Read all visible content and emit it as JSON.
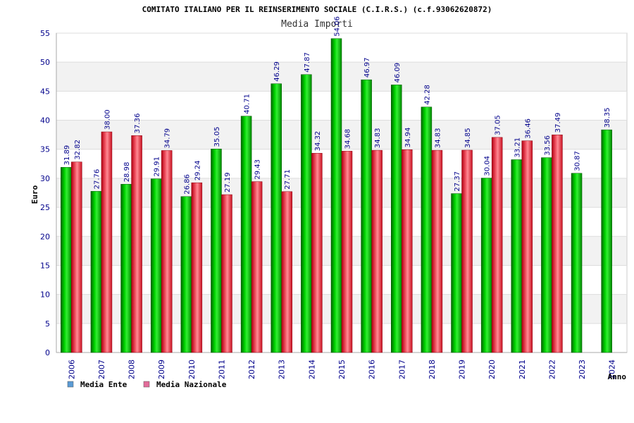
{
  "chart_data": {
    "type": "bar",
    "title": "COMITATO ITALIANO PER IL REINSERIMENTO SOCIALE (C.I.R.S.) (c.f.93062620872)",
    "subtitle": "Media Importi",
    "xlabel": "Anno",
    "ylabel": "Euro",
    "ylim": [
      0,
      55
    ],
    "yticks": [
      0,
      5,
      10,
      15,
      20,
      25,
      30,
      35,
      40,
      45,
      50,
      55
    ],
    "categories": [
      "2006",
      "2007",
      "2008",
      "2009",
      "2010",
      "2011",
      "2012",
      "2013",
      "2014",
      "2015",
      "2016",
      "2017",
      "2018",
      "2019",
      "2020",
      "2021",
      "2022",
      "2023",
      "2024"
    ],
    "series": [
      {
        "name": "Media Ente",
        "values": [
          31.89,
          27.76,
          28.98,
          29.91,
          26.86,
          35.05,
          40.71,
          46.29,
          47.87,
          54.06,
          46.97,
          46.09,
          42.28,
          27.37,
          30.04,
          33.21,
          33.56,
          30.87,
          38.35
        ],
        "labels": [
          "31.89",
          "27.76",
          "28.98",
          "29.91",
          "26.86",
          "35.05",
          "40.71",
          "46.29",
          "47.87",
          "54.06",
          "46.97",
          "46.09",
          "42.28",
          "27.37",
          "30.04",
          "33.21",
          "33.56",
          "30.87",
          "38.35"
        ],
        "color": "#00b800",
        "legend_color": "#5b9bd5"
      },
      {
        "name": "Media Nazionale",
        "values": [
          32.82,
          38.0,
          37.36,
          34.79,
          29.24,
          27.19,
          29.43,
          27.71,
          34.32,
          34.68,
          34.83,
          34.94,
          34.83,
          34.85,
          37.05,
          36.46,
          37.49,
          null,
          null
        ],
        "labels": [
          "32.82",
          "38.00",
          "37.36",
          "34.79",
          "29.24",
          "27.19",
          "29.43",
          "27.71",
          "34.32",
          "34.68",
          "34.83",
          "34.94",
          "34.83",
          "34.85",
          "37.05",
          "36.46",
          "37.49",
          "",
          ""
        ],
        "color": "#e8323c",
        "legend_color": "#e36c9a"
      }
    ],
    "grid": true,
    "legend_position": "bottom-left"
  }
}
